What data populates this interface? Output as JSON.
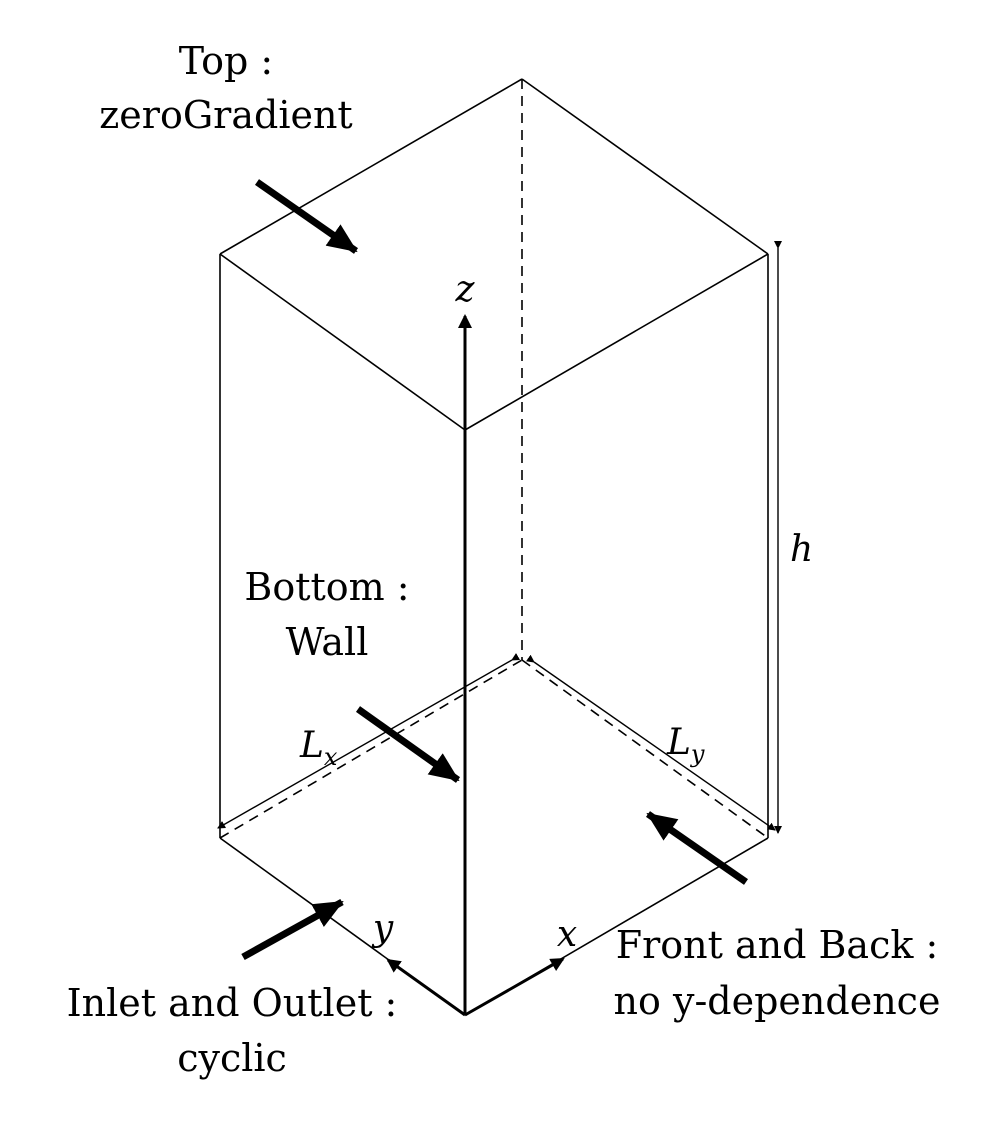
{
  "labels": {
    "top_line1": "Top :",
    "top_line2": "zeroGradient",
    "bottom_line1": "Bottom :",
    "bottom_line2": "Wall",
    "inlet_line1": "Inlet and Outlet :",
    "inlet_line2": "cyclic",
    "front_line1": "Front and Back :",
    "front_line2": "no y-dependence"
  },
  "axes": {
    "x": "x",
    "y": "y",
    "z": "z"
  },
  "dimensions": {
    "height": "h",
    "lx_main": "L",
    "lx_sub": "x",
    "ly_main": "L",
    "ly_sub": "y"
  }
}
